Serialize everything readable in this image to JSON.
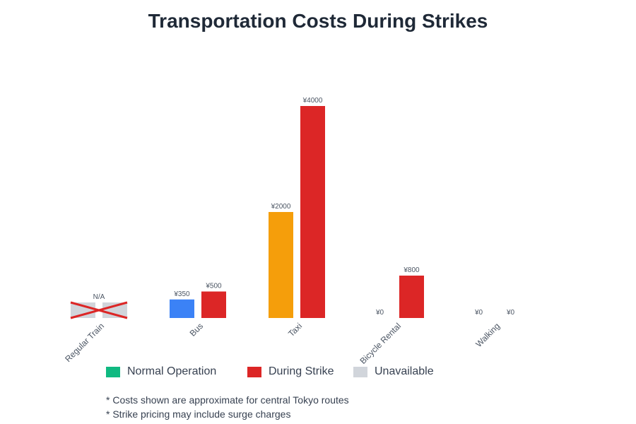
{
  "chart_data": {
    "type": "bar",
    "title": "Transportation Costs During Strikes",
    "categories": [
      "Regular Train",
      "Bus",
      "Taxi",
      "Bicycle Rental",
      "Walking"
    ],
    "currency": "¥",
    "series": [
      {
        "name": "Normal Operation",
        "values": [
          null,
          350,
          2000,
          0,
          0
        ]
      },
      {
        "name": "During Strike",
        "values": [
          null,
          500,
          4000,
          800,
          0
        ]
      }
    ],
    "normal_colors": [
      "#d1d5db",
      "#3b82f6",
      "#f59e0b",
      "#10b981",
      "#10b981"
    ],
    "strike_color": "#dc2626",
    "unavailable_color": "#d1d5db",
    "unavailable_label": "N/A",
    "ylim": [
      0,
      4000
    ],
    "grid": false,
    "legend": [
      {
        "label": "Normal Operation",
        "color": "#10b981"
      },
      {
        "label": "During Strike",
        "color": "#dc2626"
      },
      {
        "label": "Unavailable",
        "color": "#d1d5db"
      }
    ],
    "legend_position": "bottom",
    "notes": [
      "* Costs shown are approximate for central Tokyo routes",
      "* Strike pricing may include surge charges"
    ]
  }
}
